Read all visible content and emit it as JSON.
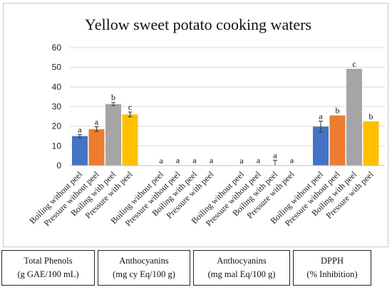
{
  "chart_data": {
    "type": "bar",
    "title": "Yellow sweet potato cooking waters",
    "ylim": [
      0,
      60
    ],
    "yticks": [
      0,
      10,
      20,
      30,
      40,
      50,
      60
    ],
    "grid": true,
    "series_colors": [
      "#4472C4",
      "#ED7D31",
      "#A5A5A5",
      "#FFC000"
    ],
    "groups": [
      {
        "name_line1": "Total Phenols",
        "name_line2": "(g GAE/100 mL)",
        "bars": [
          {
            "label": "Boiling without peel",
            "value": 15.0,
            "error": 0.8,
            "letter": "a"
          },
          {
            "label": "Pressure without peel",
            "value": 18.5,
            "error": 1.2,
            "letter": "a"
          },
          {
            "label": "Boiling with peel",
            "value": 31.3,
            "error": 0.8,
            "letter": "b"
          },
          {
            "label": "Pressure with peel",
            "value": 26.0,
            "error": 1.2,
            "letter": "c"
          }
        ]
      },
      {
        "name_line1": "Anthocyanins",
        "name_line2": "(mg cy Eq/100 g)",
        "bars": [
          {
            "label": "Boiling without peel",
            "value": 0.0,
            "error": 0.0,
            "letter": "a"
          },
          {
            "label": "Pressure without peel",
            "value": 0.1,
            "error": 0.0,
            "letter": "a"
          },
          {
            "label": "Boiling with peel",
            "value": 0.1,
            "error": 0.0,
            "letter": "a"
          },
          {
            "label": "Pressure with peel",
            "value": 0.1,
            "error": 0.0,
            "letter": "a"
          }
        ]
      },
      {
        "name_line1": "Anthocyanins",
        "name_line2": "(mg mal Eq/100 g)",
        "bars": [
          {
            "label": "Boiling without peel",
            "value": 0.0,
            "error": 0.0,
            "letter": "a"
          },
          {
            "label": "Pressure without peel",
            "value": 0.2,
            "error": 0.0,
            "letter": "a"
          },
          {
            "label": "Boiling with peel",
            "value": 0.2,
            "error": 2.5,
            "letter": "a"
          },
          {
            "label": "Pressure with peel",
            "value": 0.2,
            "error": 0.0,
            "letter": "a"
          }
        ]
      },
      {
        "name_line1": "DPPH",
        "name_line2": "(% Inhibition)",
        "bars": [
          {
            "label": "Boiling without peel",
            "value": 19.8,
            "error": 2.8,
            "letter": "a"
          },
          {
            "label": "Pressure without peel",
            "value": 25.5,
            "error": 0.0,
            "letter": "b"
          },
          {
            "label": "Boiling with peel",
            "value": 49.2,
            "error": 0.0,
            "letter": "c"
          },
          {
            "label": "Pressure with peel",
            "value": 22.5,
            "error": 0.0,
            "letter": "b"
          }
        ]
      }
    ]
  }
}
